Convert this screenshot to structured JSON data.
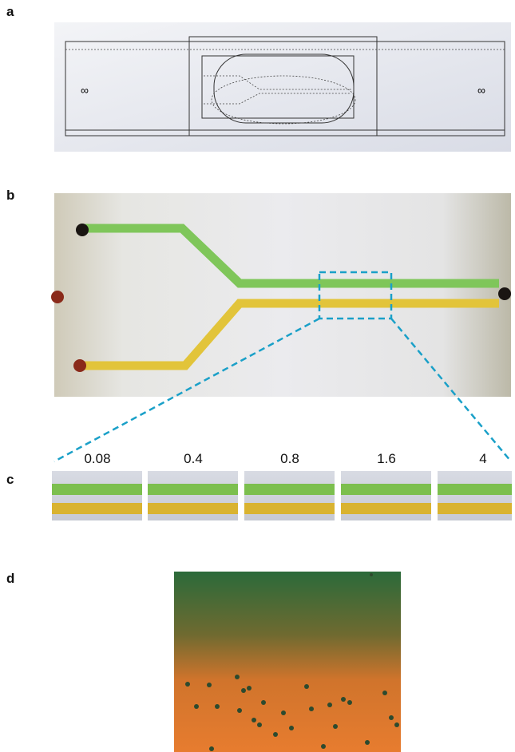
{
  "panels": [
    {
      "label": "a"
    },
    {
      "label": "b"
    },
    {
      "label": "c",
      "conditions": [
        0.08,
        0.4,
        0.8,
        1.6,
        4
      ]
    },
    {
      "label": "d"
    }
  ]
}
